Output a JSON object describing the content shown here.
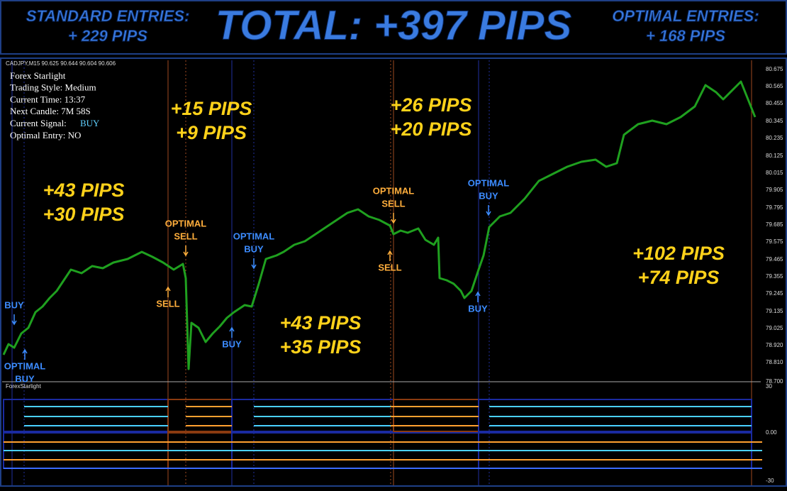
{
  "banner": {
    "standard_title": "STANDARD ENTRIES:",
    "standard_value": "+ 229 PIPS",
    "total": "TOTAL: +397 PIPS",
    "optimal_title": "OPTIMAL ENTRIES:",
    "optimal_value": "+ 168 PIPS"
  },
  "chart": {
    "symbol_header": "CADJPY,M15  90.625 90.644 90.604 90.606",
    "info": [
      "Forex Starlight",
      "Trading Style: Medium",
      "Current Time: 13:37",
      "Next Candle: 7M 58S"
    ],
    "signal_label": "Current Signal:",
    "signal_value": "BUY",
    "optimal_entry": "Optimal Entry: NO",
    "price_axis": [
      "80.675",
      "80.565",
      "80.455",
      "80.345",
      "80.235",
      "80.125",
      "80.015",
      "79.905",
      "79.795",
      "79.685",
      "79.575",
      "79.465",
      "79.355",
      "79.245",
      "79.135",
      "79.025",
      "78.920",
      "78.810",
      "78.700"
    ],
    "results": [
      [
        "+43 PIPS",
        "+30 PIPS"
      ],
      [
        "+15 PIPS",
        "+9 PIPS"
      ],
      [
        "+43 PIPS",
        "+35 PIPS"
      ],
      [
        "+26 PIPS",
        "+20 PIPS"
      ],
      [
        "+102 PIPS",
        "+74 PIPS"
      ]
    ],
    "signals": [
      [
        "BUY"
      ],
      [
        "OPTIMAL",
        "BUY"
      ],
      [
        "SELL"
      ],
      [
        "OPTIMAL",
        "SELL"
      ],
      [
        "BUY"
      ],
      [
        "OPTIMAL",
        "BUY"
      ],
      [
        "SELL"
      ],
      [
        "OPTIMAL",
        "SELL"
      ],
      [
        "BUY"
      ],
      [
        "OPTIMAL",
        "BUY"
      ]
    ]
  },
  "indicator": {
    "name": "ForexStarlight",
    "axis": [
      "30",
      "0.00",
      "-30"
    ]
  }
}
